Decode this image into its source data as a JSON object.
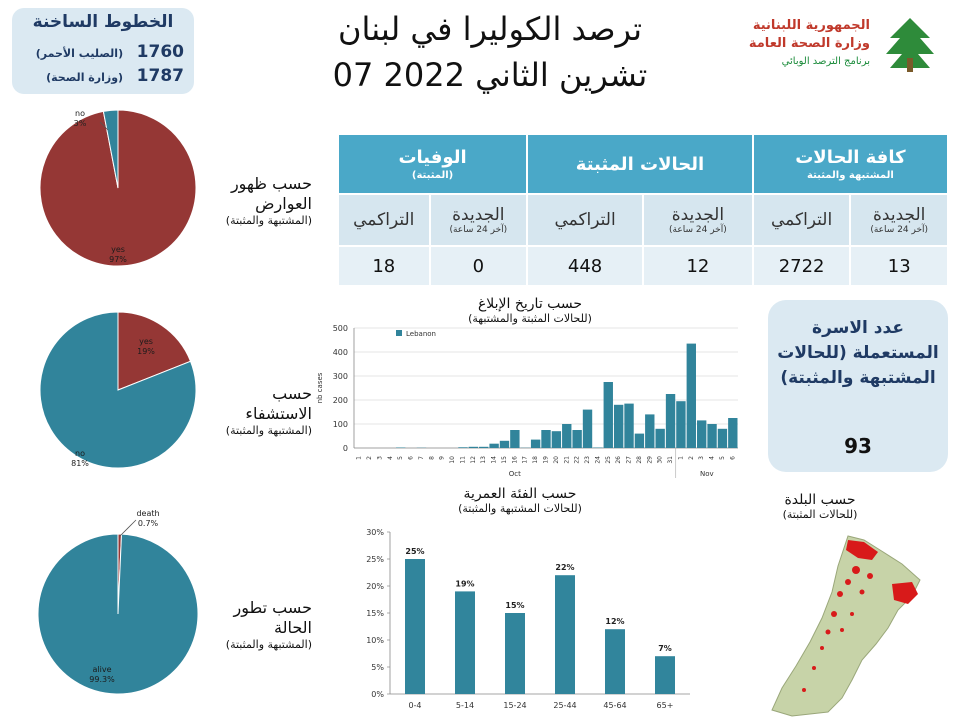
{
  "hotline": {
    "title": "الخطوط الساخنة",
    "lines": [
      {
        "number": "1760",
        "label": "(الصليب الأحمر)"
      },
      {
        "number": "1787",
        "label": "(وزارة الصحة)"
      }
    ]
  },
  "header": {
    "title_line1": "ترصد الكوليرا في لبنان",
    "title_line2": "07 تشرين الثاني 2022"
  },
  "logo": {
    "line1": "الجمهورية اللبنانية",
    "line2": "وزارة الصحة العامة",
    "line3": "برنامج الترصد الوبائي"
  },
  "summary": {
    "groups": [
      {
        "label": "كافة الحالات",
        "sub": "المشتبهة والمثبتة"
      },
      {
        "label": "الحالات المثبتة",
        "sub": ""
      },
      {
        "label": "الوفيات",
        "sub": "(المثبتة)"
      }
    ],
    "new_label": "الجديدة",
    "new_sub": "(آخر 24 ساعة)",
    "cum_label": "التراكمي",
    "values": [
      "13",
      "2722",
      "12",
      "448",
      "0",
      "18"
    ]
  },
  "symptoms_label": {
    "l1": "حسب ظهور",
    "l2": "العوارض",
    "l3": "(المشتبهة والمثبتة)"
  },
  "hosp_label": {
    "l1": "حسب الاستشفاء",
    "l3": "(المشتبهة والمثبتة)"
  },
  "outcome_label": {
    "l1": "حسب تطور",
    "l2": "الحالة",
    "l3": "(المشتبهة والمثبتة)"
  },
  "epi_title": {
    "a": "حسب تاريخ الإبلاغ",
    "b": "(للحالات المثبتة والمشتبهة)"
  },
  "age_title": {
    "a": "حسب الفئة العمرية",
    "b": "(للحالات المشتبهة والمثبتة)"
  },
  "map_title": {
    "a": "حسب البلدة",
    "b": "(للحالات المثبتة)"
  },
  "family": {
    "text": "عدد الاسرة المستعملة (للحالات المشتبهة والمثبتة)",
    "value": "93"
  },
  "colors": {
    "red": "#953735",
    "blue": "#31849b",
    "bar": "#31849b",
    "age_bar": "#31859c",
    "header": "#4aa8c8"
  },
  "chart_data": [
    {
      "type": "pie",
      "title": "",
      "slices": [
        {
          "label": "yes",
          "value": 97,
          "text": "yes\n97%"
        },
        {
          "label": "no",
          "value": 3,
          "text": "no\n3%"
        }
      ]
    },
    {
      "type": "pie",
      "title": "",
      "slices": [
        {
          "label": "yes",
          "value": 19,
          "text": "yes\n19%"
        },
        {
          "label": "no",
          "value": 81,
          "text": "no\n81%"
        }
      ]
    },
    {
      "type": "pie",
      "title": "",
      "slices": [
        {
          "label": "death",
          "value": 0.7,
          "text": "death\n0.7%"
        },
        {
          "label": "alive",
          "value": 99.3,
          "text": "alive\n99.3%"
        }
      ]
    },
    {
      "type": "bar",
      "title": "",
      "ylabel": "nb cases",
      "ylim": [
        0,
        500
      ],
      "yticks": [
        0,
        100,
        200,
        300,
        400,
        500
      ],
      "legend": "Lebanon",
      "legend_position": "top-left",
      "month_labels": [
        "Oct",
        "Nov"
      ],
      "categories": [
        "1",
        "2",
        "3",
        "4",
        "5",
        "6",
        "7",
        "8",
        "9",
        "10",
        "11",
        "12",
        "13",
        "14",
        "15",
        "16",
        "17",
        "18",
        "19",
        "20",
        "21",
        "22",
        "23",
        "24",
        "25",
        "26",
        "27",
        "28",
        "29",
        "30",
        "31",
        "1",
        "2",
        "3",
        "4",
        "5",
        "6"
      ],
      "series": [
        {
          "name": "Lebanon",
          "values": [
            0,
            0,
            0,
            0,
            2,
            0,
            1,
            0,
            0,
            0,
            3,
            5,
            5,
            18,
            30,
            75,
            1,
            35,
            75,
            70,
            100,
            75,
            160,
            2,
            275,
            180,
            185,
            60,
            140,
            80,
            225,
            195,
            435,
            115,
            100,
            80,
            125
          ]
        }
      ]
    },
    {
      "type": "bar",
      "title": "",
      "ylim": [
        0,
        30
      ],
      "yticks": [
        "0%",
        "5%",
        "10%",
        "15%",
        "20%",
        "25%",
        "30%"
      ],
      "categories": [
        "0-4",
        "5-14",
        "15-24",
        "25-44",
        "45-64",
        "65+"
      ],
      "values": [
        25,
        19,
        15,
        22,
        12,
        7
      ],
      "labels": [
        "25%",
        "19%",
        "15%",
        "22%",
        "12%",
        "7%"
      ]
    }
  ]
}
